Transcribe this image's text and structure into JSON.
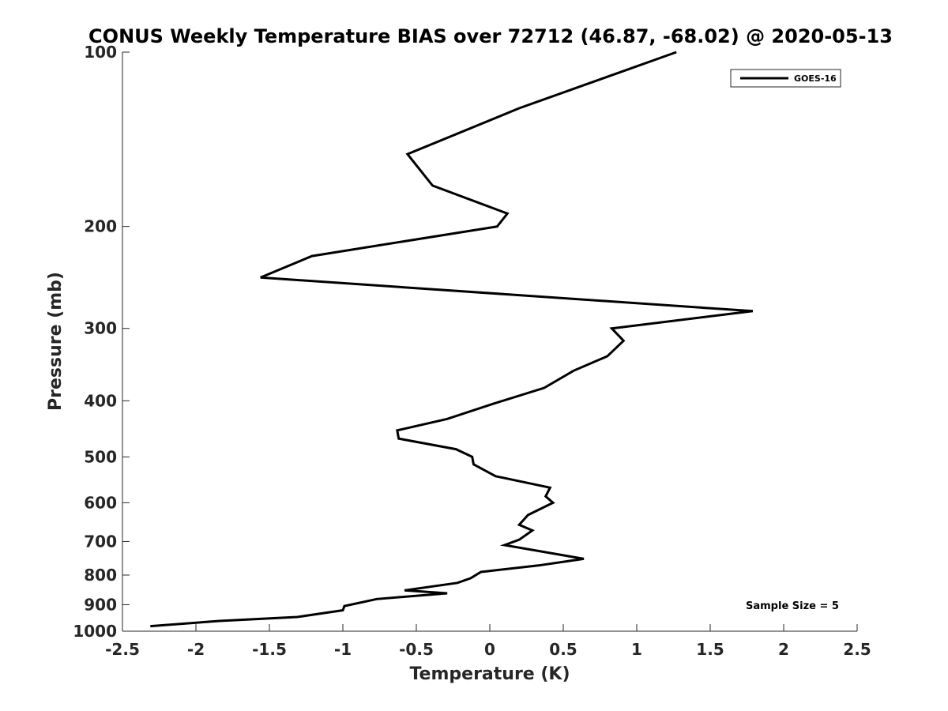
{
  "chart_data": {
    "type": "line",
    "title": "CONUS Weekly Temperature BIAS over 72712 (46.87, -68.02) @ 2020-05-13",
    "xlabel": "Temperature (K)",
    "ylabel": "Pressure (mb)",
    "xlim": [
      -2.5,
      2.5
    ],
    "ylim": [
      100,
      1000
    ],
    "y_scale": "log",
    "y_reversed": true,
    "x_ticks": [
      "-2.5",
      "-2",
      "-1.5",
      "-1",
      "-0.5",
      "0",
      "0.5",
      "1",
      "1.5",
      "2",
      "2.5"
    ],
    "y_ticks": [
      "100",
      "200",
      "300",
      "400",
      "500",
      "600",
      "700",
      "800",
      "900",
      "1000"
    ],
    "grid": false,
    "legend_position": "top-right",
    "series": [
      {
        "name": "GOES-16",
        "color": "#000000",
        "points": [
          [
            1.27,
            100
          ],
          [
            0.2,
            125
          ],
          [
            -0.56,
            150
          ],
          [
            -0.39,
            170
          ],
          [
            0.12,
            190
          ],
          [
            0.05,
            200
          ],
          [
            -1.21,
            225
          ],
          [
            -1.56,
            245
          ],
          [
            1.79,
            280
          ],
          [
            0.83,
            300
          ],
          [
            0.91,
            315
          ],
          [
            0.8,
            335
          ],
          [
            0.57,
            355
          ],
          [
            0.37,
            380
          ],
          [
            0.02,
            405
          ],
          [
            -0.29,
            430
          ],
          [
            -0.63,
            450
          ],
          [
            -0.62,
            465
          ],
          [
            -0.23,
            485
          ],
          [
            -0.12,
            500
          ],
          [
            -0.11,
            515
          ],
          [
            0.04,
            540
          ],
          [
            0.41,
            565
          ],
          [
            0.38,
            585
          ],
          [
            0.43,
            600
          ],
          [
            0.26,
            630
          ],
          [
            0.2,
            655
          ],
          [
            0.29,
            670
          ],
          [
            0.2,
            695
          ],
          [
            0.1,
            710
          ],
          [
            0.64,
            750
          ],
          [
            0.33,
            770
          ],
          [
            -0.06,
            790
          ],
          [
            -0.13,
            810
          ],
          [
            -0.22,
            825
          ],
          [
            -0.58,
            850
          ],
          [
            -0.29,
            860
          ],
          [
            -0.77,
            880
          ],
          [
            -0.99,
            905
          ],
          [
            -1.0,
            920
          ],
          [
            -1.31,
            945
          ],
          [
            -1.84,
            960
          ],
          [
            -2.31,
            980
          ]
        ]
      }
    ],
    "annotations": [
      "Sample Size = 5"
    ]
  }
}
